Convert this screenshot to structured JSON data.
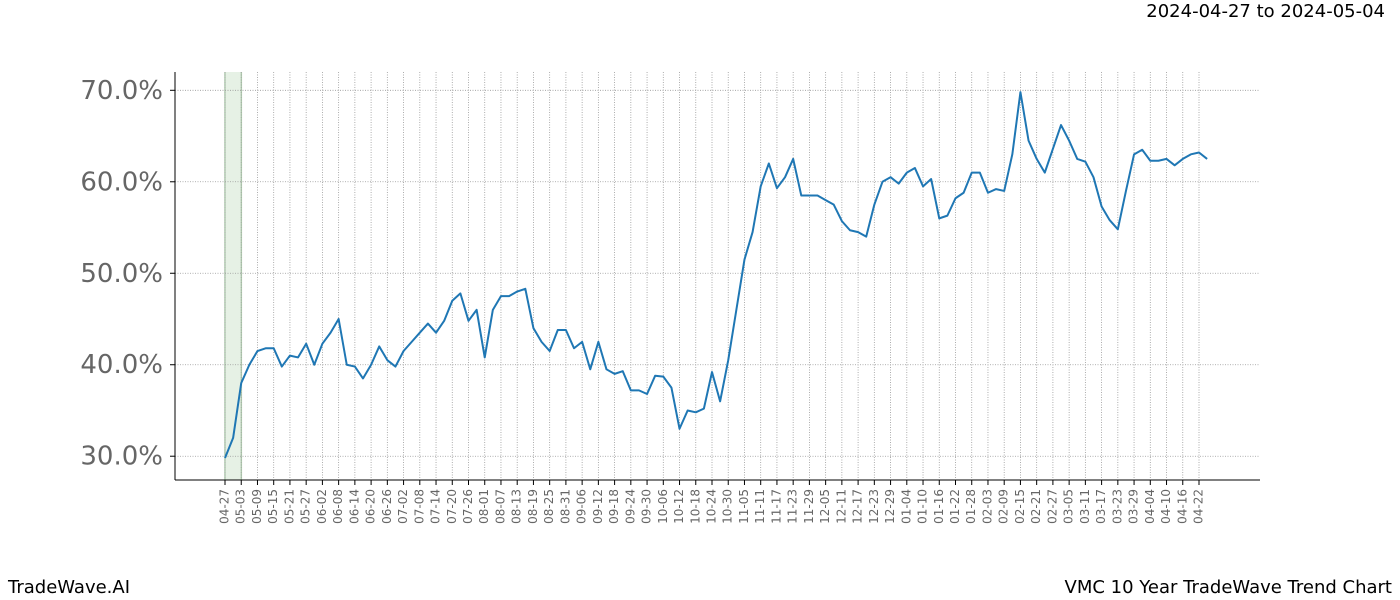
{
  "header": {
    "date_range": "2024-04-27 to 2024-05-04"
  },
  "footer": {
    "brand": "TradeWave.AI",
    "chart_name": "VMC 10 Year TradeWave Trend Chart"
  },
  "chart_data": {
    "type": "line",
    "categories": [
      "04-27",
      null,
      "05-03",
      null,
      "05-09",
      null,
      "05-15",
      null,
      "05-21",
      null,
      "05-27",
      null,
      "06-02",
      null,
      "06-08",
      null,
      "06-14",
      null,
      "06-20",
      null,
      "06-26",
      null,
      "07-02",
      null,
      "07-08",
      null,
      "07-14",
      null,
      "07-20",
      null,
      "07-26",
      null,
      "08-01",
      null,
      "08-07",
      null,
      "08-13",
      null,
      "08-19",
      null,
      "08-25",
      null,
      "08-31",
      null,
      "09-06",
      null,
      "09-12",
      null,
      "09-18",
      null,
      "09-24",
      null,
      "09-30",
      null,
      "10-06",
      null,
      "10-12",
      null,
      "10-18",
      null,
      "10-24",
      null,
      "10-30",
      null,
      "11-05",
      null,
      "11-11",
      null,
      "11-17",
      null,
      "11-23",
      null,
      "11-29",
      null,
      "12-05",
      null,
      "12-11",
      null,
      "12-17",
      null,
      "12-23",
      null,
      "12-29",
      null,
      "01-04",
      null,
      "01-10",
      null,
      "01-16",
      null,
      "01-22",
      null,
      "01-28",
      null,
      "02-03",
      null,
      "02-09",
      null,
      "02-15",
      null,
      "02-21",
      null,
      "02-27",
      null,
      "03-05",
      null,
      "03-11",
      null,
      "03-17",
      null,
      "03-23",
      null,
      "03-29",
      null,
      "04-04",
      null,
      "04-10",
      null,
      "04-16",
      null,
      "04-22",
      null
    ],
    "series": [
      {
        "color": "#1f77b4",
        "values": [
          29.8,
          32,
          38,
          40,
          41.5,
          41.8,
          41.8,
          39.8,
          41,
          40.8,
          42.3,
          40,
          42.3,
          43.5,
          45,
          40,
          39.8,
          38.5,
          40,
          42,
          40.5,
          39.8,
          41.5,
          42.5,
          43.5,
          44.5,
          43.5,
          44.8,
          47,
          47.8,
          44.8,
          46,
          40.8,
          46,
          47.5,
          47.5,
          48,
          48.3,
          44,
          42.5,
          41.5,
          43.8,
          43.8,
          41.8,
          42.5,
          39.5,
          42.5,
          39.5,
          39,
          39.3,
          37.2,
          37.2,
          36.8,
          38.8,
          38.7,
          37.5,
          33,
          35,
          34.8,
          35.2,
          39.2,
          36,
          40.5,
          46,
          51.5,
          54.5,
          59.5,
          62,
          59.3,
          60.5,
          62.5,
          58.5,
          58.5,
          58.5,
          58,
          57.5,
          55.7,
          54.7,
          54.5,
          54,
          57.5,
          60,
          60.5,
          59.8,
          61,
          61.5,
          59.5,
          60.3,
          56,
          56.3,
          58.2,
          58.8,
          61,
          61,
          58.8,
          59.2,
          59,
          63,
          69.8,
          64.5,
          62.5,
          61,
          63.6,
          66.2,
          64.5,
          62.5,
          62.2,
          60.5,
          57.3,
          55.8,
          54.8,
          59,
          63,
          63.5,
          62.3,
          62.3,
          62.5,
          61.8,
          62.5,
          63,
          63.2,
          62.5
        ]
      }
    ],
    "ylim": [
      27.4,
      72.0
    ],
    "yticks": [
      {
        "value": 30,
        "label": "30.0%"
      },
      {
        "value": 40,
        "label": "40.0%"
      },
      {
        "value": 50,
        "label": "50.0%"
      },
      {
        "value": 60,
        "label": "60.0%"
      },
      {
        "value": 70,
        "label": "70.0%"
      }
    ],
    "highlight_color": "#d5e8d4",
    "grid": true
  }
}
